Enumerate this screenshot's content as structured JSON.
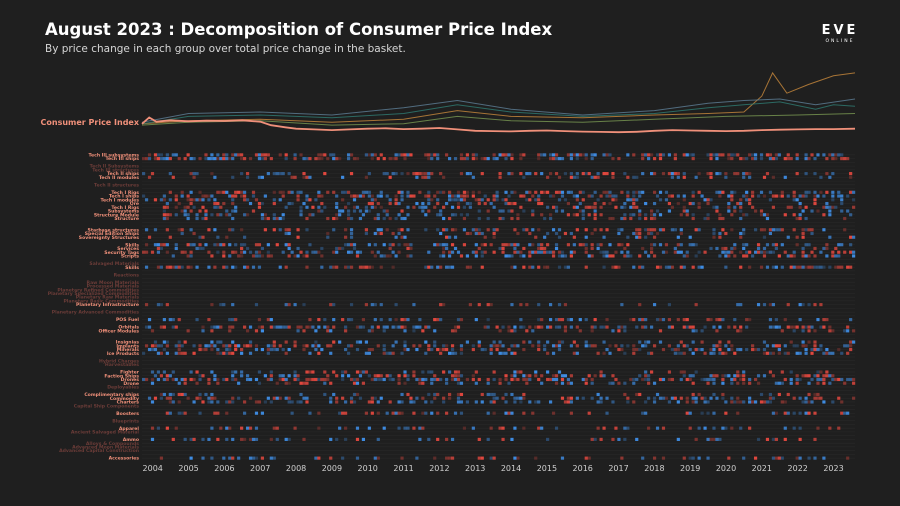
{
  "header": {
    "title": "August 2023 : Decomposition of Consumer Price Index",
    "subtitle": "By price change in each group over total price change in the basket.",
    "logo_main": "EVE",
    "logo_sub": "ONLINE"
  },
  "colors": {
    "background": "#1f1f1f",
    "cpi": "#f0907a",
    "positive": "#e4483f",
    "negative": "#3f8ee6",
    "label_active": "#f0907a",
    "label_inactive": "#6b3c38",
    "grid": "#2b2b2b",
    "series_lines": [
      "#c98a3c",
      "#2f7d74",
      "#5e7f97",
      "#7b9a52",
      "#8c6f4a"
    ]
  },
  "chart_data": {
    "type": "heatmap",
    "title": "August 2023 : Decomposition of Consumer Price Index",
    "subtitle": "By price change in each group over total price change in the basket.",
    "xlabel": "",
    "ylabel": "",
    "x_ticks": [
      "2004",
      "2005",
      "2006",
      "2007",
      "2008",
      "2009",
      "2010",
      "2011",
      "2012",
      "2013",
      "2014",
      "2015",
      "2016",
      "2017",
      "2018",
      "2019",
      "2020",
      "2021",
      "2022",
      "2023"
    ],
    "xlim": [
      2003.7,
      2023.6
    ],
    "cpi_line": {
      "name": "Consumer Price Index",
      "x": [
        2003.7,
        2003.9,
        2004.1,
        2004.5,
        2005.0,
        2005.5,
        2006.0,
        2006.5,
        2007.0,
        2007.3,
        2007.7,
        2008.0,
        2008.5,
        2009.0,
        2009.5,
        2010.0,
        2010.5,
        2011.0,
        2011.5,
        2012.0,
        2012.5,
        2013.0,
        2013.5,
        2014.0,
        2014.5,
        2015.0,
        2015.5,
        2016.0,
        2016.5,
        2017.0,
        2017.5,
        2018.0,
        2018.5,
        2019.0,
        2019.5,
        2020.0,
        2020.5,
        2021.0,
        2021.5,
        2022.0,
        2022.5,
        2023.0,
        2023.6
      ],
      "y": [
        0.3,
        0.75,
        0.45,
        0.55,
        0.48,
        0.52,
        0.5,
        0.55,
        0.45,
        0.2,
        0.05,
        -0.05,
        -0.1,
        -0.15,
        -0.1,
        -0.05,
        -0.02,
        -0.08,
        -0.05,
        0.0,
        -0.1,
        -0.2,
        -0.22,
        -0.24,
        -0.2,
        -0.18,
        -0.22,
        -0.26,
        -0.28,
        -0.3,
        -0.27,
        -0.2,
        -0.15,
        -0.18,
        -0.2,
        -0.22,
        -0.2,
        -0.15,
        -0.12,
        -0.1,
        -0.08,
        -0.08,
        -0.05
      ]
    },
    "background_series": [
      {
        "name": "",
        "x": [
          2003.7,
          2005,
          2007,
          2009,
          2011,
          2012.5,
          2014,
          2016,
          2018,
          2019.5,
          2020.5,
          2021.0,
          2021.3,
          2021.7,
          2022.3,
          2023.0,
          2023.6
        ],
        "y": [
          0.3,
          0.5,
          0.6,
          0.4,
          0.6,
          1.2,
          0.8,
          0.7,
          0.9,
          1.0,
          1.1,
          2.2,
          3.8,
          2.4,
          3.0,
          3.6,
          3.8
        ]
      },
      {
        "name": "",
        "x": [
          2003.7,
          2005,
          2007,
          2009,
          2011,
          2012.5,
          2014,
          2016,
          2018,
          2019.5,
          2020.5,
          2021.5,
          2022.5,
          2023.0,
          2023.6
        ],
        "y": [
          0.3,
          0.8,
          0.9,
          0.7,
          1.0,
          1.6,
          1.1,
          0.8,
          1.0,
          1.4,
          1.6,
          1.8,
          1.3,
          1.6,
          1.5
        ]
      },
      {
        "name": "",
        "x": [
          2003.7,
          2005,
          2007,
          2009,
          2011,
          2012.5,
          2014,
          2016,
          2018,
          2019.5,
          2020.5,
          2021.5,
          2022.5,
          2023.6
        ],
        "y": [
          0.4,
          1.0,
          1.1,
          0.9,
          1.4,
          1.9,
          1.3,
          0.9,
          1.2,
          1.7,
          1.9,
          2.0,
          1.6,
          2.0
        ]
      },
      {
        "name": "",
        "x": [
          2003.7,
          2005,
          2007,
          2009,
          2011,
          2012.5,
          2014,
          2016,
          2018,
          2020,
          2022,
          2023.6
        ],
        "y": [
          0.2,
          0.4,
          0.5,
          0.2,
          0.3,
          0.8,
          0.5,
          0.4,
          0.6,
          0.8,
          0.9,
          1.0
        ]
      }
    ],
    "rows": [
      {
        "label": "Tech III subsystems",
        "active": true
      },
      {
        "label": "Tech III ships",
        "active": true
      },
      {
        "label": "",
        "active": false
      },
      {
        "label": "Tech II Subsystems",
        "active": false
      },
      {
        "label": "Tech III structures",
        "active": false
      },
      {
        "label": "Tech II ships",
        "active": true
      },
      {
        "label": "Tech II modules",
        "active": true
      },
      {
        "label": "",
        "active": false
      },
      {
        "label": "Tech II structures",
        "active": false
      },
      {
        "label": "",
        "active": false
      },
      {
        "label": "Tech I Rigs",
        "active": true
      },
      {
        "label": "Tech I ships",
        "active": true
      },
      {
        "label": "Tech I modules",
        "active": true
      },
      {
        "label": "Ore",
        "active": true
      },
      {
        "label": "Tech I Rigs",
        "active": true
      },
      {
        "label": "Subsystems",
        "active": true
      },
      {
        "label": "Structure Module",
        "active": true
      },
      {
        "label": "Structure",
        "active": true
      },
      {
        "label": "",
        "active": false
      },
      {
        "label": "",
        "active": false
      },
      {
        "label": "Starbase structures",
        "active": true
      },
      {
        "label": "Special Edition Ships",
        "active": true
      },
      {
        "label": "Sovereignty Structures",
        "active": true
      },
      {
        "label": "",
        "active": false
      },
      {
        "label": "Skills",
        "active": true
      },
      {
        "label": "Services",
        "active": true
      },
      {
        "label": "Security Tags",
        "active": true
      },
      {
        "label": "Scripts",
        "active": true
      },
      {
        "label": "",
        "active": false
      },
      {
        "label": "Salvaged Materials",
        "active": false
      },
      {
        "label": "Skills",
        "active": true
      },
      {
        "label": "",
        "active": false
      },
      {
        "label": "Reactions",
        "active": false
      },
      {
        "label": "",
        "active": false
      },
      {
        "label": "Raw Moon Materials",
        "active": false
      },
      {
        "label": "Processed Materials",
        "active": false
      },
      {
        "label": "Planetary Refined Commodities",
        "active": false
      },
      {
        "label": "Planetary Specialized Commodities",
        "active": false
      },
      {
        "label": "Planetary Raw Materials",
        "active": false
      },
      {
        "label": "Planetary Basic Commodities",
        "active": false
      },
      {
        "label": "Planetary Infrastructure",
        "active": true
      },
      {
        "label": "",
        "active": false
      },
      {
        "label": "Planetary Advanced Commodities",
        "active": false
      },
      {
        "label": "",
        "active": false
      },
      {
        "label": "POS Fuel",
        "active": true
      },
      {
        "label": "",
        "active": false
      },
      {
        "label": "Orbitals",
        "active": true
      },
      {
        "label": "Officer Modules",
        "active": true
      },
      {
        "label": "",
        "active": false
      },
      {
        "label": "",
        "active": false
      },
      {
        "label": "Insignias",
        "active": true
      },
      {
        "label": "Implants",
        "active": true
      },
      {
        "label": "Minerals",
        "active": true
      },
      {
        "label": "Ice Products",
        "active": true
      },
      {
        "label": "",
        "active": false
      },
      {
        "label": "Hybrid Charges",
        "active": false
      },
      {
        "label": "Harvestables",
        "active": false
      },
      {
        "label": "",
        "active": false
      },
      {
        "label": "Fighter",
        "active": true
      },
      {
        "label": "Faction Ships",
        "active": true
      },
      {
        "label": "Drones",
        "active": true
      },
      {
        "label": "Drone",
        "active": true
      },
      {
        "label": "Deployables",
        "active": false
      },
      {
        "label": "",
        "active": false
      },
      {
        "label": "Complimentary ships",
        "active": true
      },
      {
        "label": "Commodity",
        "active": true
      },
      {
        "label": "Charters",
        "active": true
      },
      {
        "label": "Capital Ship Components",
        "active": false
      },
      {
        "label": "",
        "active": false
      },
      {
        "label": "Boosters",
        "active": true
      },
      {
        "label": "",
        "active": false
      },
      {
        "label": "Blueprints",
        "active": false
      },
      {
        "label": "",
        "active": false
      },
      {
        "label": "Apparel",
        "active": true
      },
      {
        "label": "Ancient Salvaged Material",
        "active": false
      },
      {
        "label": "",
        "active": false
      },
      {
        "label": "Ammo",
        "active": true
      },
      {
        "label": "Alloys & Compounds",
        "active": false
      },
      {
        "label": "Advanced Moon Materials",
        "active": false
      },
      {
        "label": "Advanced Capital Construction",
        "active": false
      },
      {
        "label": "",
        "active": false
      },
      {
        "label": "Accessories",
        "active": true
      }
    ],
    "heat_columns": 240,
    "heat_value_range": [
      -1,
      1
    ],
    "grid": true
  }
}
